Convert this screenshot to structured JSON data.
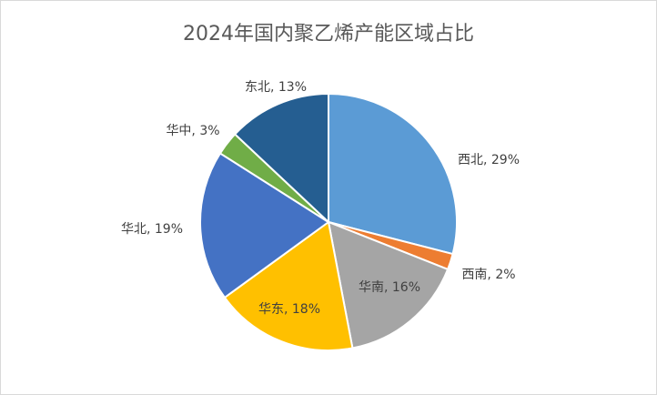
{
  "chart_data": {
    "type": "pie",
    "title": "2024年国内聚乙烯产能区域占比",
    "values": [
      29,
      2,
      16,
      18,
      19,
      3,
      13
    ],
    "value_labels": [
      "西北, 29%",
      "西南, 2%",
      "华南, 16%",
      "华东, 18%",
      "华北, 19%",
      "华中, 3%",
      "东北, 13%"
    ],
    "colors": [
      "#5b9bd5",
      "#ed7d31",
      "#a5a5a5",
      "#ffc000",
      "#4472c4",
      "#70ad47",
      "#255e91"
    ]
  }
}
